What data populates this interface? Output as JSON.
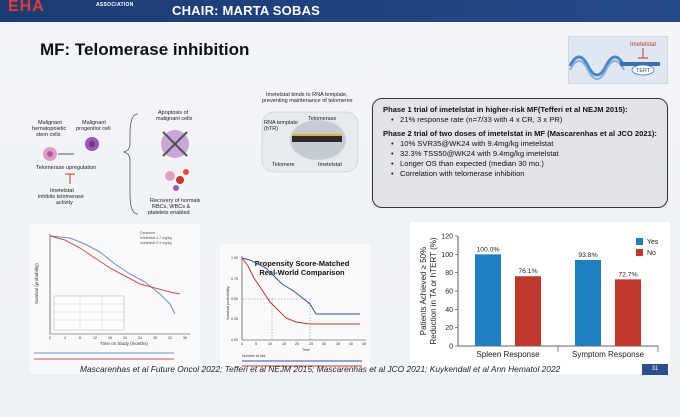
{
  "header": {
    "logo_text": "EHA",
    "logo_subtext": "ASSOCIATION",
    "chair": "CHAIR: MARTA SOBAS"
  },
  "slide": {
    "title": "MF: Telomerase inhibition",
    "page_number": "31",
    "footer": "Mascarenhas et al Future Oncol 2022; Tefferi et al NEJM 2015; Mascarenhas et al JCO 2021; Kuykendall et al Ann Hematol 2022"
  },
  "mechanism": {
    "stem_cells": "Malignant hematopoietic stem cells",
    "progenitor": "Malignant progenitor cell",
    "telomerase": "Telomerase upregulation",
    "inhibit": "Imetelstat inhibits telomerase activity",
    "apoptosis": "Apoptosis of malignant cells",
    "recovery": "Recovery of normals RBCs, WBCs & platelets enabled",
    "binds": "Imetelstat binds to RNA template, preventing maintenance of telomeres",
    "rna_template": "RNA template (hTR)",
    "telomerase_label": "Telomerase",
    "telomere": "Telomere",
    "imetelstat": "Imetelstat"
  },
  "corner_diagram": {
    "imetelstat": "Imetelstat",
    "tert": "TERT"
  },
  "trial_box": {
    "p1_heading": "Phase 1 trial of imetelstat in higher-risk MF(Tefferi et al NEJM 2015):",
    "p1_items": [
      "21% response rate (n=7/33 with 4 x CR, 3 x PR)"
    ],
    "p2_heading": "Phase 2 trial of two doses of imetelstat in MF (Mascarenhas et al JCO 2021):",
    "p2_items": [
      "10% SVR35@WK24 with 9.4mg/kg imetelstat",
      "32.3% TSS50@WK24 with 9.4mg/kg imetelstat",
      "Longer OS than expected (median 30 mo.)",
      "Correlation with telomerase inhibition"
    ]
  },
  "km_left": {
    "ylabel": "Survival (probability)",
    "xlabel": "Time on Study (months)",
    "legend": [
      "Censored",
      "Imetelstat 4.7 mg/kg",
      "Imetelstat 9.4 mg/kg"
    ],
    "x_ticks": [
      "0",
      "4",
      "8",
      "12",
      "16",
      "20",
      "24",
      "28",
      "32",
      "36"
    ]
  },
  "km_mid": {
    "title": "Propensity Score-Matched Real-World Comparison",
    "ylabel": "Survival probability",
    "xlabel": "Time",
    "risk_label": "Number at risk",
    "y_ticks": [
      "0.00",
      "0.25",
      "0.50",
      "0.75",
      "1.00"
    ],
    "x_ticks": [
      "0",
      "5",
      "10",
      "15",
      "20",
      "25",
      "30",
      "35",
      "40",
      "45"
    ]
  },
  "bar_chart": {
    "colors": {
      "yes": "#1f7fc1",
      "no": "#c0392b"
    }
  },
  "chart_data": {
    "type": "bar",
    "categories": [
      "Spleen Response",
      "Symptom Response"
    ],
    "series": [
      {
        "name": "Yes",
        "values": [
          100.0,
          93.8
        ]
      },
      {
        "name": "No",
        "values": [
          76.1,
          72.7
        ]
      }
    ],
    "data_labels": [
      [
        "100.0%",
        "76.1%"
      ],
      [
        "93.8%",
        "72.7%"
      ]
    ],
    "ylabel": "Patients Achieved ≥ 50% Reduction in TA or hTERT (%)",
    "ylim": [
      0,
      120
    ],
    "y_ticks": [
      "0",
      "20",
      "40",
      "60",
      "80",
      "100",
      "120"
    ],
    "legend_position": "top-right"
  }
}
